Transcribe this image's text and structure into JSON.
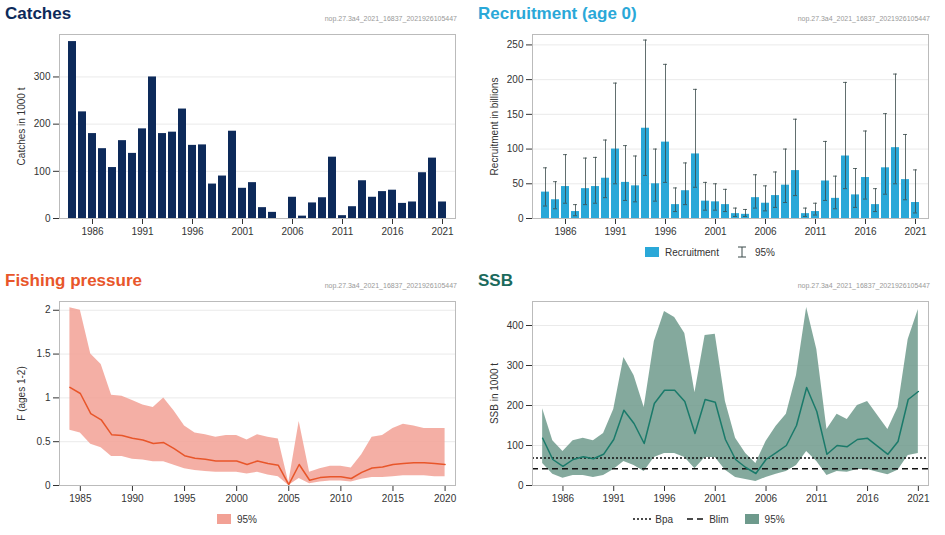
{
  "chart_data": [
    {
      "type": "bar",
      "title": "Catches",
      "subtitle": "nop.27.3a4_2021_16837_2021926105447",
      "title_color": "#0d2a5a",
      "ylabel": "Catches in 1000 t",
      "color": "#0d2a5a",
      "x": [
        1984,
        1985,
        1986,
        1987,
        1988,
        1989,
        1990,
        1991,
        1992,
        1993,
        1994,
        1995,
        1996,
        1997,
        1998,
        1999,
        2000,
        2001,
        2002,
        2003,
        2004,
        2005,
        2006,
        2007,
        2008,
        2009,
        2010,
        2011,
        2012,
        2013,
        2014,
        2015,
        2016,
        2017,
        2018,
        2019,
        2020,
        2021
      ],
      "values": [
        375,
        226,
        180,
        148,
        108,
        165,
        138,
        190,
        300,
        180,
        183,
        232,
        155,
        156,
        73,
        90,
        185,
        64,
        76,
        23,
        13,
        0,
        45,
        5,
        33,
        44,
        130,
        6,
        25,
        80,
        45,
        57,
        60,
        32,
        35,
        97,
        128,
        35
      ],
      "xticks": [
        1986,
        1991,
        1996,
        2001,
        2006,
        2011,
        2016,
        2021
      ],
      "ylim": [
        0,
        390
      ],
      "yticks": [
        0,
        100,
        200,
        300
      ],
      "grid": true
    },
    {
      "type": "bar",
      "title": "Recruitment (age 0)",
      "subtitle": "nop.27.3a4_2021_16837_2021926105447",
      "title_color": "#2aa8d8",
      "ylabel": "Recruitment in billions",
      "series": [
        {
          "name": "Recruitment",
          "color": "#2aa8d8",
          "values": [
            38,
            27,
            46,
            10,
            43,
            46,
            58,
            100,
            52,
            47,
            130,
            50,
            110,
            20,
            40,
            93,
            25,
            24,
            20,
            7,
            6,
            30,
            22,
            33,
            48,
            69,
            7,
            10,
            54,
            29,
            90,
            34,
            59,
            20,
            73,
            102,
            56,
            23
          ]
        }
      ],
      "interval": {
        "name": "95%",
        "color": "#3a4a4a",
        "lower": [
          18,
          14,
          22,
          4,
          20,
          22,
          30,
          50,
          26,
          24,
          62,
          25,
          52,
          10,
          20,
          45,
          12,
          12,
          10,
          3,
          3,
          15,
          11,
          16,
          23,
          33,
          3,
          5,
          26,
          14,
          43,
          16,
          28,
          10,
          35,
          50,
          27,
          8
        ],
        "upper": [
          73,
          53,
          92,
          20,
          87,
          88,
          113,
          195,
          105,
          90,
          257,
          100,
          222,
          44,
          80,
          186,
          52,
          50,
          42,
          15,
          13,
          63,
          47,
          67,
          100,
          143,
          15,
          22,
          111,
          61,
          196,
          72,
          126,
          43,
          151,
          208,
          121,
          70
        ]
      },
      "x": [
        1984,
        1985,
        1986,
        1987,
        1988,
        1989,
        1990,
        1991,
        1992,
        1993,
        1994,
        1995,
        1996,
        1997,
        1998,
        1999,
        2000,
        2001,
        2002,
        2003,
        2004,
        2005,
        2006,
        2007,
        2008,
        2009,
        2010,
        2011,
        2012,
        2013,
        2014,
        2015,
        2016,
        2017,
        2018,
        2019,
        2020,
        2021
      ],
      "xticks": [
        1986,
        1991,
        1996,
        2001,
        2006,
        2011,
        2016,
        2021
      ],
      "ylim": [
        0,
        265
      ],
      "yticks": [
        0,
        50,
        100,
        150,
        200,
        250
      ],
      "grid": true
    },
    {
      "type": "line",
      "title": "Fishing pressure",
      "subtitle": "nop.27.3a4_2021_16837_2021926105447",
      "title_color": "#e8562a",
      "ylabel": "F (ages 1-2)",
      "color": "#e8562a",
      "x": [
        1984,
        1985,
        1986,
        1987,
        1988,
        1989,
        1990,
        1991,
        1992,
        1993,
        1994,
        1995,
        1996,
        1997,
        1998,
        1999,
        2000,
        2001,
        2002,
        2003,
        2004,
        2005,
        2006,
        2007,
        2008,
        2009,
        2010,
        2011,
        2012,
        2013,
        2014,
        2015,
        2016,
        2017,
        2018,
        2019,
        2020
      ],
      "values": [
        1.12,
        1.05,
        0.82,
        0.75,
        0.58,
        0.57,
        0.54,
        0.52,
        0.48,
        0.49,
        0.42,
        0.34,
        0.31,
        0.3,
        0.28,
        0.28,
        0.28,
        0.24,
        0.28,
        0.25,
        0.23,
        0.01,
        0.24,
        0.06,
        0.09,
        0.1,
        0.1,
        0.08,
        0.15,
        0.2,
        0.21,
        0.24,
        0.25,
        0.26,
        0.26,
        0.25,
        0.24
      ],
      "interval": {
        "name": "95%",
        "color": "#f2a195",
        "lower": [
          0.63,
          0.6,
          0.47,
          0.43,
          0.33,
          0.33,
          0.3,
          0.29,
          0.27,
          0.27,
          0.23,
          0.19,
          0.17,
          0.16,
          0.15,
          0.15,
          0.15,
          0.13,
          0.15,
          0.12,
          0.1,
          0,
          0.08,
          0.02,
          0.04,
          0.05,
          0.05,
          0.04,
          0.07,
          0.09,
          0.09,
          0.1,
          0.11,
          0.11,
          0.11,
          0.1,
          0.1
        ],
        "upper": [
          2.03,
          2.0,
          1.5,
          1.38,
          1.03,
          1.02,
          0.97,
          0.92,
          0.89,
          1.0,
          0.85,
          0.68,
          0.6,
          0.58,
          0.55,
          0.57,
          0.57,
          0.52,
          0.58,
          0.55,
          0.53,
          0.03,
          0.73,
          0.15,
          0.19,
          0.22,
          0.22,
          0.2,
          0.35,
          0.55,
          0.57,
          0.65,
          0.7,
          0.68,
          0.65,
          0.65,
          0.65
        ]
      },
      "xlim": [
        1983,
        2021
      ],
      "xticks": [
        1985,
        1990,
        1995,
        2000,
        2005,
        2010,
        2015,
        2020
      ],
      "ylim": [
        0,
        2.1
      ],
      "yticks": [
        0,
        0.5,
        1,
        1.5,
        2
      ],
      "grid": true
    },
    {
      "type": "line",
      "title": "SSB",
      "subtitle": "nop.27.3a4_2021_16837_2021926105447",
      "title_color": "#1b6a5c",
      "ylabel": "SSB in 1000 t",
      "color": "#1a7a6a",
      "x": [
        1984,
        1985,
        1986,
        1987,
        1988,
        1989,
        1990,
        1991,
        1992,
        1993,
        1994,
        1995,
        1996,
        1997,
        1998,
        1999,
        2000,
        2001,
        2002,
        2003,
        2004,
        2005,
        2006,
        2007,
        2008,
        2009,
        2010,
        2011,
        2012,
        2013,
        2014,
        2015,
        2016,
        2017,
        2018,
        2019,
        2020,
        2021
      ],
      "values": [
        118,
        65,
        48,
        65,
        72,
        67,
        78,
        115,
        188,
        155,
        105,
        205,
        238,
        238,
        210,
        130,
        215,
        208,
        115,
        65,
        45,
        30,
        65,
        82,
        100,
        150,
        245,
        185,
        78,
        100,
        97,
        115,
        118,
        98,
        78,
        110,
        215,
        235
      ],
      "interval": {
        "name": "95%",
        "color": "#6e9a8c",
        "lower": [
          55,
          28,
          18,
          25,
          25,
          20,
          25,
          40,
          60,
          50,
          35,
          70,
          80,
          80,
          70,
          42,
          70,
          70,
          38,
          20,
          15,
          10,
          20,
          28,
          35,
          50,
          85,
          60,
          25,
          35,
          33,
          40,
          40,
          33,
          27,
          38,
          75,
          80
        ],
        "upper": [
          192,
          112,
          85,
          112,
          118,
          112,
          130,
          190,
          320,
          275,
          195,
          360,
          435,
          420,
          380,
          232,
          375,
          378,
          210,
          118,
          80,
          55,
          110,
          148,
          178,
          275,
          445,
          340,
          140,
          178,
          165,
          200,
          210,
          175,
          140,
          195,
          365,
          440
        ]
      },
      "reference_lines": [
        {
          "name": "Bpa",
          "value": 69,
          "color": "#111111",
          "line_style": "dotted"
        },
        {
          "name": "Blim",
          "value": 42,
          "color": "#111111",
          "line_style": "dashed"
        }
      ],
      "xlim": [
        1983,
        2022
      ],
      "xticks": [
        1986,
        1991,
        1996,
        2001,
        2006,
        2011,
        2016,
        2021
      ],
      "ylim": [
        0,
        460
      ],
      "yticks": [
        0,
        100,
        200,
        300,
        400
      ],
      "grid": true
    }
  ]
}
